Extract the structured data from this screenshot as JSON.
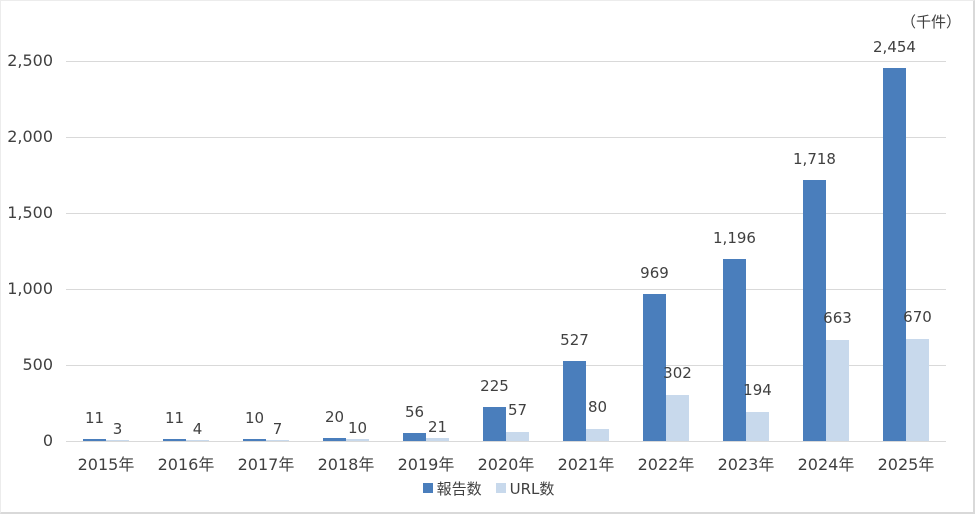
{
  "unit_label": "（千件）",
  "colors": {
    "report_bar": "#4a7ebc",
    "url_bar": "#c8d9ec",
    "gridline": "#d9d9d9",
    "text": "#404040"
  },
  "y_axis": {
    "ticks": [
      "0",
      "500",
      "1,000",
      "1,500",
      "2,000",
      "2,500"
    ],
    "min": 0,
    "max": 2500
  },
  "legend": {
    "items": [
      {
        "label": "報告数",
        "color": "#4a7ebc"
      },
      {
        "label": "URL数",
        "color": "#c8d9ec"
      }
    ]
  },
  "chart_data": {
    "type": "bar",
    "title": "",
    "unit": "（千件）",
    "xlabel": "",
    "ylabel": "",
    "ylim": [
      0,
      2500
    ],
    "grid": true,
    "legend_position": "bottom",
    "categories": [
      "2015年",
      "2016年",
      "2017年",
      "2018年",
      "2019年",
      "2020年",
      "2021年",
      "2022年",
      "2023年",
      "2024年",
      "2025年"
    ],
    "series": [
      {
        "name": "報告数",
        "color": "#4a7ebc",
        "values": [
          11,
          11,
          10,
          20,
          56,
          225,
          527,
          969,
          1196,
          1718,
          2454
        ],
        "labels": [
          "11",
          "11",
          "10",
          "20",
          "56",
          "225",
          "527",
          "969",
          "1,196",
          "1,718",
          "2,454"
        ]
      },
      {
        "name": "URL数",
        "color": "#c8d9ec",
        "values": [
          3,
          4,
          7,
          10,
          21,
          57,
          80,
          302,
          194,
          663,
          670
        ],
        "labels": [
          "3",
          "4",
          "7",
          "10",
          "21",
          "57",
          "80",
          "302",
          "194",
          "663",
          "670"
        ]
      }
    ]
  }
}
